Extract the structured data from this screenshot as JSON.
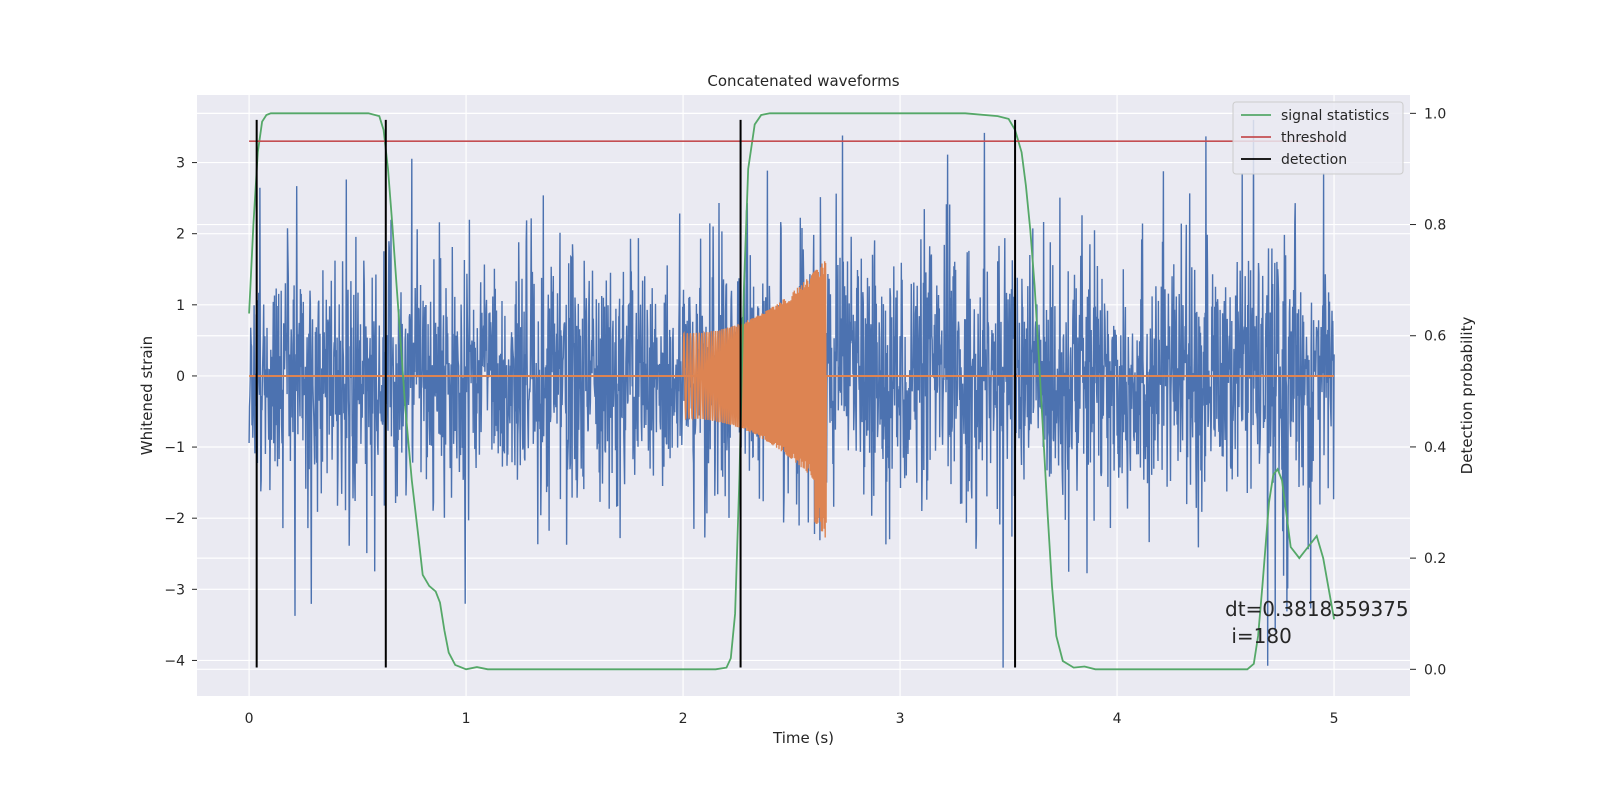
{
  "chart_data": {
    "type": "line",
    "title": "Concatenated waveforms",
    "xlabel": "Time (s)",
    "ylabel_left": "Whitened strain",
    "ylabel_right": "Detection probability",
    "xlim": [
      -0.24,
      5.35
    ],
    "ylim_left": [
      -4.5,
      3.95
    ],
    "ylim_right": [
      -0.048,
      1.033
    ],
    "x_ticks": [
      0,
      1,
      2,
      3,
      4,
      5
    ],
    "y_left_ticks": [
      3,
      2,
      1,
      0,
      -1,
      -2,
      -3,
      -4
    ],
    "y_left_tick_labels": [
      "3",
      "2",
      "1",
      "0",
      "−1",
      "−2",
      "−3",
      "−4"
    ],
    "y_right_ticks": [
      1.0,
      0.8,
      0.6,
      0.4,
      0.2,
      0.0
    ],
    "y_right_tick_labels": [
      "1.0",
      "0.8",
      "0.6",
      "0.4",
      "0.2",
      "0.0"
    ],
    "grid": true,
    "legend_position": "top-right",
    "legend": [
      {
        "label": "signal statistics",
        "color": "#55a868"
      },
      {
        "label": "threshold",
        "color": "#c44e52"
      },
      {
        "label": "detection",
        "color": "#000000"
      }
    ],
    "series": [
      {
        "name": "whitened strain noise",
        "axis": "left",
        "color": "#4c72b0",
        "x_range": [
          0,
          5
        ],
        "typical_amplitude": 1.2,
        "max": 3.6,
        "min": -4.1
      },
      {
        "name": "injected waveform",
        "axis": "left",
        "color": "#dd8452",
        "x_range": [
          2.0,
          2.66
        ],
        "start_amplitude": 0.6,
        "peak_amplitude": 1.65,
        "peak_min": -2.3
      },
      {
        "name": "signal statistics",
        "axis": "right",
        "color": "#55a868",
        "x": [
          0.0,
          0.02,
          0.04,
          0.06,
          0.08,
          0.1,
          0.14,
          0.2,
          0.3,
          0.4,
          0.5,
          0.55,
          0.6,
          0.62,
          0.64,
          0.66,
          0.68,
          0.7,
          0.72,
          0.75,
          0.78,
          0.8,
          0.83,
          0.86,
          0.88,
          0.9,
          0.92,
          0.95,
          1.0,
          1.05,
          1.1,
          1.2,
          1.5,
          2.0,
          2.15,
          2.2,
          2.22,
          2.24,
          2.26,
          2.28,
          2.3,
          2.33,
          2.36,
          2.4,
          2.5,
          3.0,
          3.3,
          3.45,
          3.5,
          3.53,
          3.56,
          3.58,
          3.6,
          3.62,
          3.64,
          3.66,
          3.68,
          3.7,
          3.72,
          3.75,
          3.8,
          3.85,
          3.9,
          4.0,
          4.3,
          4.6,
          4.63,
          4.65,
          4.67,
          4.7,
          4.72,
          4.74,
          4.76,
          4.8,
          4.84,
          4.88,
          4.92,
          4.95,
          5.0
        ],
        "values": [
          0.64,
          0.8,
          0.93,
          0.985,
          0.997,
          1.0,
          1.0,
          1.0,
          1.0,
          1.0,
          1.0,
          1.0,
          0.995,
          0.97,
          0.9,
          0.8,
          0.69,
          0.58,
          0.47,
          0.34,
          0.24,
          0.17,
          0.15,
          0.14,
          0.12,
          0.07,
          0.03,
          0.008,
          0.0,
          0.004,
          0.0,
          0.0,
          0.0,
          0.0,
          0.0,
          0.003,
          0.02,
          0.1,
          0.35,
          0.68,
          0.9,
          0.98,
          0.997,
          1.0,
          1.0,
          1.0,
          1.0,
          0.995,
          0.99,
          0.97,
          0.93,
          0.87,
          0.79,
          0.69,
          0.56,
          0.42,
          0.28,
          0.15,
          0.06,
          0.015,
          0.003,
          0.005,
          0.0,
          0.0,
          0.0,
          0.0,
          0.01,
          0.06,
          0.15,
          0.3,
          0.35,
          0.36,
          0.34,
          0.22,
          0.2,
          0.22,
          0.24,
          0.2,
          0.09
        ]
      },
      {
        "name": "threshold",
        "axis": "right",
        "color": "#c44e52",
        "x_range": [
          0,
          5
        ],
        "value": 0.95
      },
      {
        "name": "detection",
        "axis": "left",
        "color": "#000000",
        "x": [
          0.035,
          0.63,
          2.265,
          3.53
        ],
        "y_range": [
          -4.1,
          3.6
        ]
      }
    ],
    "annotation": {
      "line1": "dt=0.3818359375",
      "line2": " i=180"
    }
  }
}
